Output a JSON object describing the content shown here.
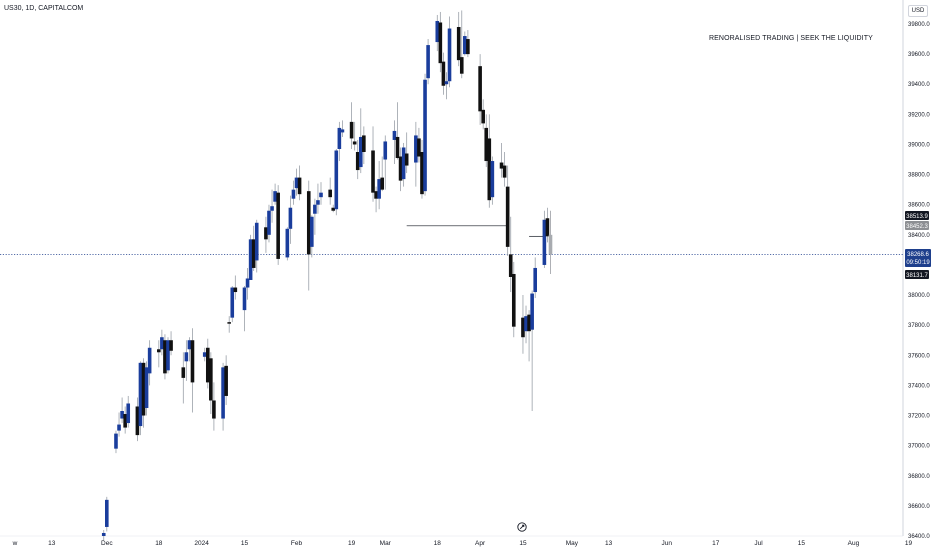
{
  "header": {
    "symbol": "US30, 1D, CAPITALCOM",
    "watermark": "RENORALISED TRADING | SEEK THE LIQUIDITY",
    "currency": "USD"
  },
  "price_tags": {
    "last": "38513.9",
    "prev": "38452.3",
    "current": "38268.6",
    "countdown": "09:50:19",
    "low": "38131.7"
  },
  "colors": {
    "bull": "#1a3d9c",
    "bear": "#111111",
    "wick": "#9aa0a8",
    "current_line": "#1e3f8c",
    "tag_dark": "#131722",
    "tag_grey": "#8d8f93",
    "tag_blue": "#1e3f8c"
  },
  "chart_data": {
    "type": "candlestick",
    "title": "US30, 1D, CAPITALCOM",
    "ylim": [
      36400,
      39900
    ],
    "y_ticks": [
      36400,
      36600,
      36800,
      37000,
      37200,
      37400,
      37600,
      37800,
      38000,
      38200,
      38400,
      38600,
      38800,
      39000,
      39200,
      39400,
      39600,
      39800
    ],
    "x_ticks": [
      "w",
      "13",
      "Dec",
      "18",
      "2024",
      "15",
      "Feb",
      "19",
      "Mar",
      "18",
      "Apr",
      "15",
      "May",
      "13",
      "Jun",
      "17",
      "Jul",
      "15",
      "Aug",
      "19"
    ],
    "grid": false,
    "annotations": [
      {
        "type": "hline",
        "from": "2024-03-08",
        "to": "2024-04-10",
        "price": 38460
      },
      {
        "type": "hline",
        "from": "2024-04-17",
        "to": "2024-04-22",
        "price": 38390
      },
      {
        "type": "hline",
        "price": 38268.6,
        "style": "dotted",
        "label": "current"
      }
    ],
    "candles": [
      {
        "date": "2023-11-30",
        "open": 36400,
        "high": 36440,
        "low": 36370,
        "close": 36420
      },
      {
        "date": "2023-12-01",
        "open": 36460,
        "high": 36660,
        "low": 36430,
        "close": 36640
      },
      {
        "date": "2023-12-04",
        "open": 36980,
        "high": 37100,
        "low": 36950,
        "close": 37080
      },
      {
        "date": "2023-12-05",
        "open": 37100,
        "high": 37220,
        "low": 37060,
        "close": 37140
      },
      {
        "date": "2023-12-06",
        "open": 37180,
        "high": 37320,
        "low": 37150,
        "close": 37230
      },
      {
        "date": "2023-12-07",
        "open": 37210,
        "high": 37260,
        "low": 37080,
        "close": 37120
      },
      {
        "date": "2023-12-08",
        "open": 37150,
        "high": 37330,
        "low": 37120,
        "close": 37280
      },
      {
        "date": "2023-12-11",
        "open": 37260,
        "high": 37320,
        "low": 37030,
        "close": 37070
      },
      {
        "date": "2023-12-12",
        "open": 37130,
        "high": 37560,
        "low": 37070,
        "close": 37550
      },
      {
        "date": "2023-12-13",
        "open": 37550,
        "high": 37580,
        "low": 37120,
        "close": 37200
      },
      {
        "date": "2023-12-14",
        "open": 37250,
        "high": 37560,
        "low": 37200,
        "close": 37520
      },
      {
        "date": "2023-12-15",
        "open": 37480,
        "high": 37700,
        "low": 37400,
        "close": 37650
      },
      {
        "date": "2023-12-18",
        "open": 37640,
        "high": 37700,
        "low": 37520,
        "close": 37620
      },
      {
        "date": "2023-12-19",
        "open": 37640,
        "high": 37770,
        "low": 37600,
        "close": 37720
      },
      {
        "date": "2023-12-20",
        "open": 37700,
        "high": 37740,
        "low": 37440,
        "close": 37480
      },
      {
        "date": "2023-12-21",
        "open": 37500,
        "high": 37720,
        "low": 37480,
        "close": 37700
      },
      {
        "date": "2023-12-22",
        "open": 37700,
        "high": 37760,
        "low": 37600,
        "close": 37630
      },
      {
        "date": "2023-12-26",
        "open": 37520,
        "high": 37620,
        "low": 37280,
        "close": 37450
      },
      {
        "date": "2023-12-27",
        "open": 37560,
        "high": 37700,
        "low": 37430,
        "close": 37620
      },
      {
        "date": "2023-12-28",
        "open": 37640,
        "high": 37720,
        "low": 37560,
        "close": 37700
      },
      {
        "date": "2023-12-29",
        "open": 37700,
        "high": 37780,
        "low": 37220,
        "close": 37420
      },
      {
        "date": "2024-01-02",
        "open": 37590,
        "high": 37650,
        "low": 37560,
        "close": 37620
      },
      {
        "date": "2024-01-03",
        "open": 37650,
        "high": 37710,
        "low": 37380,
        "close": 37420
      },
      {
        "date": "2024-01-04",
        "open": 37580,
        "high": 37620,
        "low": 37210,
        "close": 37300
      },
      {
        "date": "2024-01-05",
        "open": 37300,
        "high": 37420,
        "low": 37100,
        "close": 37180
      },
      {
        "date": "2024-01-08",
        "open": 37180,
        "high": 37550,
        "low": 37100,
        "close": 37520
      },
      {
        "date": "2024-01-09",
        "open": 37530,
        "high": 37600,
        "low": 37270,
        "close": 37330
      },
      {
        "date": "2024-01-10",
        "open": 37820,
        "high": 37860,
        "low": 37750,
        "close": 37810
      },
      {
        "date": "2024-01-11",
        "open": 37850,
        "high": 38060,
        "low": 37820,
        "close": 38050
      },
      {
        "date": "2024-01-12",
        "open": 38050,
        "high": 38130,
        "low": 37970,
        "close": 38020
      },
      {
        "date": "2024-01-15",
        "open": 37900,
        "high": 38060,
        "low": 37760,
        "close": 38050
      },
      {
        "date": "2024-01-16",
        "open": 38050,
        "high": 38180,
        "low": 37970,
        "close": 38110
      },
      {
        "date": "2024-01-17",
        "open": 38100,
        "high": 38400,
        "low": 38100,
        "close": 38370
      },
      {
        "date": "2024-01-18",
        "open": 38370,
        "high": 38460,
        "low": 38160,
        "close": 38180
      },
      {
        "date": "2024-01-19",
        "open": 38230,
        "high": 38500,
        "low": 38150,
        "close": 38480
      },
      {
        "date": "2024-01-22",
        "open": 38450,
        "high": 38520,
        "low": 38280,
        "close": 38370
      },
      {
        "date": "2024-01-23",
        "open": 38400,
        "high": 38600,
        "low": 38350,
        "close": 38560
      },
      {
        "date": "2024-01-24",
        "open": 38560,
        "high": 38700,
        "low": 38480,
        "close": 38590
      },
      {
        "date": "2024-01-25",
        "open": 38620,
        "high": 38740,
        "low": 38600,
        "close": 38690
      },
      {
        "date": "2024-01-26",
        "open": 38680,
        "high": 38730,
        "low": 38200,
        "close": 38240
      },
      {
        "date": "2024-01-29",
        "open": 38250,
        "high": 38450,
        "low": 38230,
        "close": 38440
      },
      {
        "date": "2024-01-30",
        "open": 38440,
        "high": 38660,
        "low": 38340,
        "close": 38580
      },
      {
        "date": "2024-01-31",
        "open": 38640,
        "high": 38760,
        "low": 38600,
        "close": 38700
      },
      {
        "date": "2024-02-01",
        "open": 38710,
        "high": 38840,
        "low": 38660,
        "close": 38780
      },
      {
        "date": "2024-02-02",
        "open": 38780,
        "high": 38860,
        "low": 38630,
        "close": 38670
      },
      {
        "date": "2024-02-05",
        "open": 38690,
        "high": 38760,
        "low": 38030,
        "close": 38270
      },
      {
        "date": "2024-02-06",
        "open": 38320,
        "high": 38530,
        "low": 38250,
        "close": 38520
      },
      {
        "date": "2024-02-07",
        "open": 38540,
        "high": 38640,
        "low": 38400,
        "close": 38600
      },
      {
        "date": "2024-02-08",
        "open": 38600,
        "high": 38740,
        "low": 38540,
        "close": 38630
      },
      {
        "date": "2024-02-09",
        "open": 38650,
        "high": 38750,
        "low": 38600,
        "close": 38680
      },
      {
        "date": "2024-02-12",
        "open": 38700,
        "high": 38780,
        "low": 38600,
        "close": 38650
      },
      {
        "date": "2024-02-13",
        "open": 38580,
        "high": 38600,
        "low": 38550,
        "close": 38560
      },
      {
        "date": "2024-02-14",
        "open": 38570,
        "high": 38970,
        "low": 38530,
        "close": 38960
      },
      {
        "date": "2024-02-15",
        "open": 38970,
        "high": 39150,
        "low": 38890,
        "close": 39110
      },
      {
        "date": "2024-02-16",
        "open": 39080,
        "high": 39160,
        "low": 39050,
        "close": 39100
      },
      {
        "date": "2024-02-19",
        "open": 39150,
        "high": 39280,
        "low": 38970,
        "close": 39040
      },
      {
        "date": "2024-02-20",
        "open": 39020,
        "high": 39150,
        "low": 38960,
        "close": 39000
      },
      {
        "date": "2024-02-21",
        "open": 38950,
        "high": 39030,
        "low": 38770,
        "close": 38830
      },
      {
        "date": "2024-02-22",
        "open": 38850,
        "high": 39240,
        "low": 38810,
        "close": 39050
      },
      {
        "date": "2024-02-23",
        "open": 39060,
        "high": 39120,
        "low": 38870,
        "close": 38950
      },
      {
        "date": "2024-02-26",
        "open": 38960,
        "high": 39120,
        "low": 38620,
        "close": 38680
      },
      {
        "date": "2024-02-27",
        "open": 38690,
        "high": 38720,
        "low": 38550,
        "close": 38640
      },
      {
        "date": "2024-02-28",
        "open": 38640,
        "high": 38890,
        "low": 38570,
        "close": 38770
      },
      {
        "date": "2024-02-29",
        "open": 38780,
        "high": 38920,
        "low": 38690,
        "close": 38700
      },
      {
        "date": "2024-03-01",
        "open": 38900,
        "high": 39060,
        "low": 38700,
        "close": 39020
      },
      {
        "date": "2024-03-04",
        "open": 39030,
        "high": 39160,
        "low": 38870,
        "close": 39090
      },
      {
        "date": "2024-03-05",
        "open": 39050,
        "high": 39280,
        "low": 38900,
        "close": 38910
      },
      {
        "date": "2024-03-06",
        "open": 38920,
        "high": 38980,
        "low": 38690,
        "close": 38760
      },
      {
        "date": "2024-03-07",
        "open": 38770,
        "high": 39010,
        "low": 38720,
        "close": 38980
      },
      {
        "date": "2024-03-08",
        "open": 38940,
        "high": 39080,
        "low": 38810,
        "close": 38860
      },
      {
        "date": "2024-03-11",
        "open": 38880,
        "high": 39150,
        "low": 38720,
        "close": 39060
      },
      {
        "date": "2024-03-12",
        "open": 39040,
        "high": 39110,
        "low": 38880,
        "close": 38920
      },
      {
        "date": "2024-03-13",
        "open": 38950,
        "high": 39030,
        "low": 38640,
        "close": 38670
      },
      {
        "date": "2024-03-14",
        "open": 38690,
        "high": 39470,
        "low": 38660,
        "close": 39430
      },
      {
        "date": "2024-03-15",
        "open": 39440,
        "high": 39700,
        "low": 39400,
        "close": 39660
      },
      {
        "date": "2024-03-18",
        "open": 39680,
        "high": 39860,
        "low": 39620,
        "close": 39820
      },
      {
        "date": "2024-03-19",
        "open": 39810,
        "high": 39880,
        "low": 39480,
        "close": 39540
      },
      {
        "date": "2024-03-20",
        "open": 39550,
        "high": 39610,
        "low": 39330,
        "close": 39390
      },
      {
        "date": "2024-03-21",
        "open": 39400,
        "high": 39480,
        "low": 39300,
        "close": 39420
      },
      {
        "date": "2024-03-22",
        "open": 39420,
        "high": 39850,
        "low": 39380,
        "close": 39770
      },
      {
        "date": "2024-03-25",
        "open": 39780,
        "high": 39880,
        "low": 39520,
        "close": 39560
      },
      {
        "date": "2024-03-26",
        "open": 39580,
        "high": 39890,
        "low": 39440,
        "close": 39470
      },
      {
        "date": "2024-03-27",
        "open": 39600,
        "high": 39750,
        "low": 39590,
        "close": 39720
      },
      {
        "date": "2024-03-28",
        "open": 39700,
        "high": 39760,
        "low": 39580,
        "close": 39600
      },
      {
        "date": "2024-04-01",
        "open": 39520,
        "high": 39600,
        "low": 39130,
        "close": 39220
      },
      {
        "date": "2024-04-02",
        "open": 39230,
        "high": 39300,
        "low": 39100,
        "close": 39140
      },
      {
        "date": "2024-04-03",
        "open": 39110,
        "high": 39200,
        "low": 38850,
        "close": 38890
      },
      {
        "date": "2024-04-04",
        "open": 39040,
        "high": 39200,
        "low": 38580,
        "close": 38630
      },
      {
        "date": "2024-04-05",
        "open": 38650,
        "high": 38920,
        "low": 38600,
        "close": 38890
      },
      {
        "date": "2024-04-08",
        "open": 38880,
        "high": 39010,
        "low": 38780,
        "close": 38840
      },
      {
        "date": "2024-04-09",
        "open": 38860,
        "high": 38950,
        "low": 38720,
        "close": 38780
      },
      {
        "date": "2024-04-10",
        "open": 38720,
        "high": 38860,
        "low": 38260,
        "close": 38320
      },
      {
        "date": "2024-04-11",
        "open": 38270,
        "high": 38520,
        "low": 38020,
        "close": 38120
      },
      {
        "date": "2024-04-12",
        "open": 38140,
        "high": 38220,
        "low": 37720,
        "close": 37790
      },
      {
        "date": "2024-04-15",
        "open": 37850,
        "high": 38000,
        "low": 37610,
        "close": 37720
      },
      {
        "date": "2024-04-16",
        "open": 37760,
        "high": 37930,
        "low": 37680,
        "close": 37860
      },
      {
        "date": "2024-04-17",
        "open": 37870,
        "high": 37900,
        "low": 37560,
        "close": 37760
      },
      {
        "date": "2024-04-18",
        "open": 37770,
        "high": 38030,
        "low": 37230,
        "close": 38010
      },
      {
        "date": "2024-04-19",
        "open": 38020,
        "high": 38250,
        "low": 37980,
        "close": 38180
      },
      {
        "date": "2024-04-22",
        "open": 38200,
        "high": 38560,
        "low": 38180,
        "close": 38500
      },
      {
        "date": "2024-04-23",
        "open": 38510,
        "high": 38580,
        "low": 38350,
        "close": 38390
      },
      {
        "date": "2024-04-24",
        "open": 38400,
        "high": 38560,
        "low": 38140,
        "close": 38270
      }
    ]
  }
}
